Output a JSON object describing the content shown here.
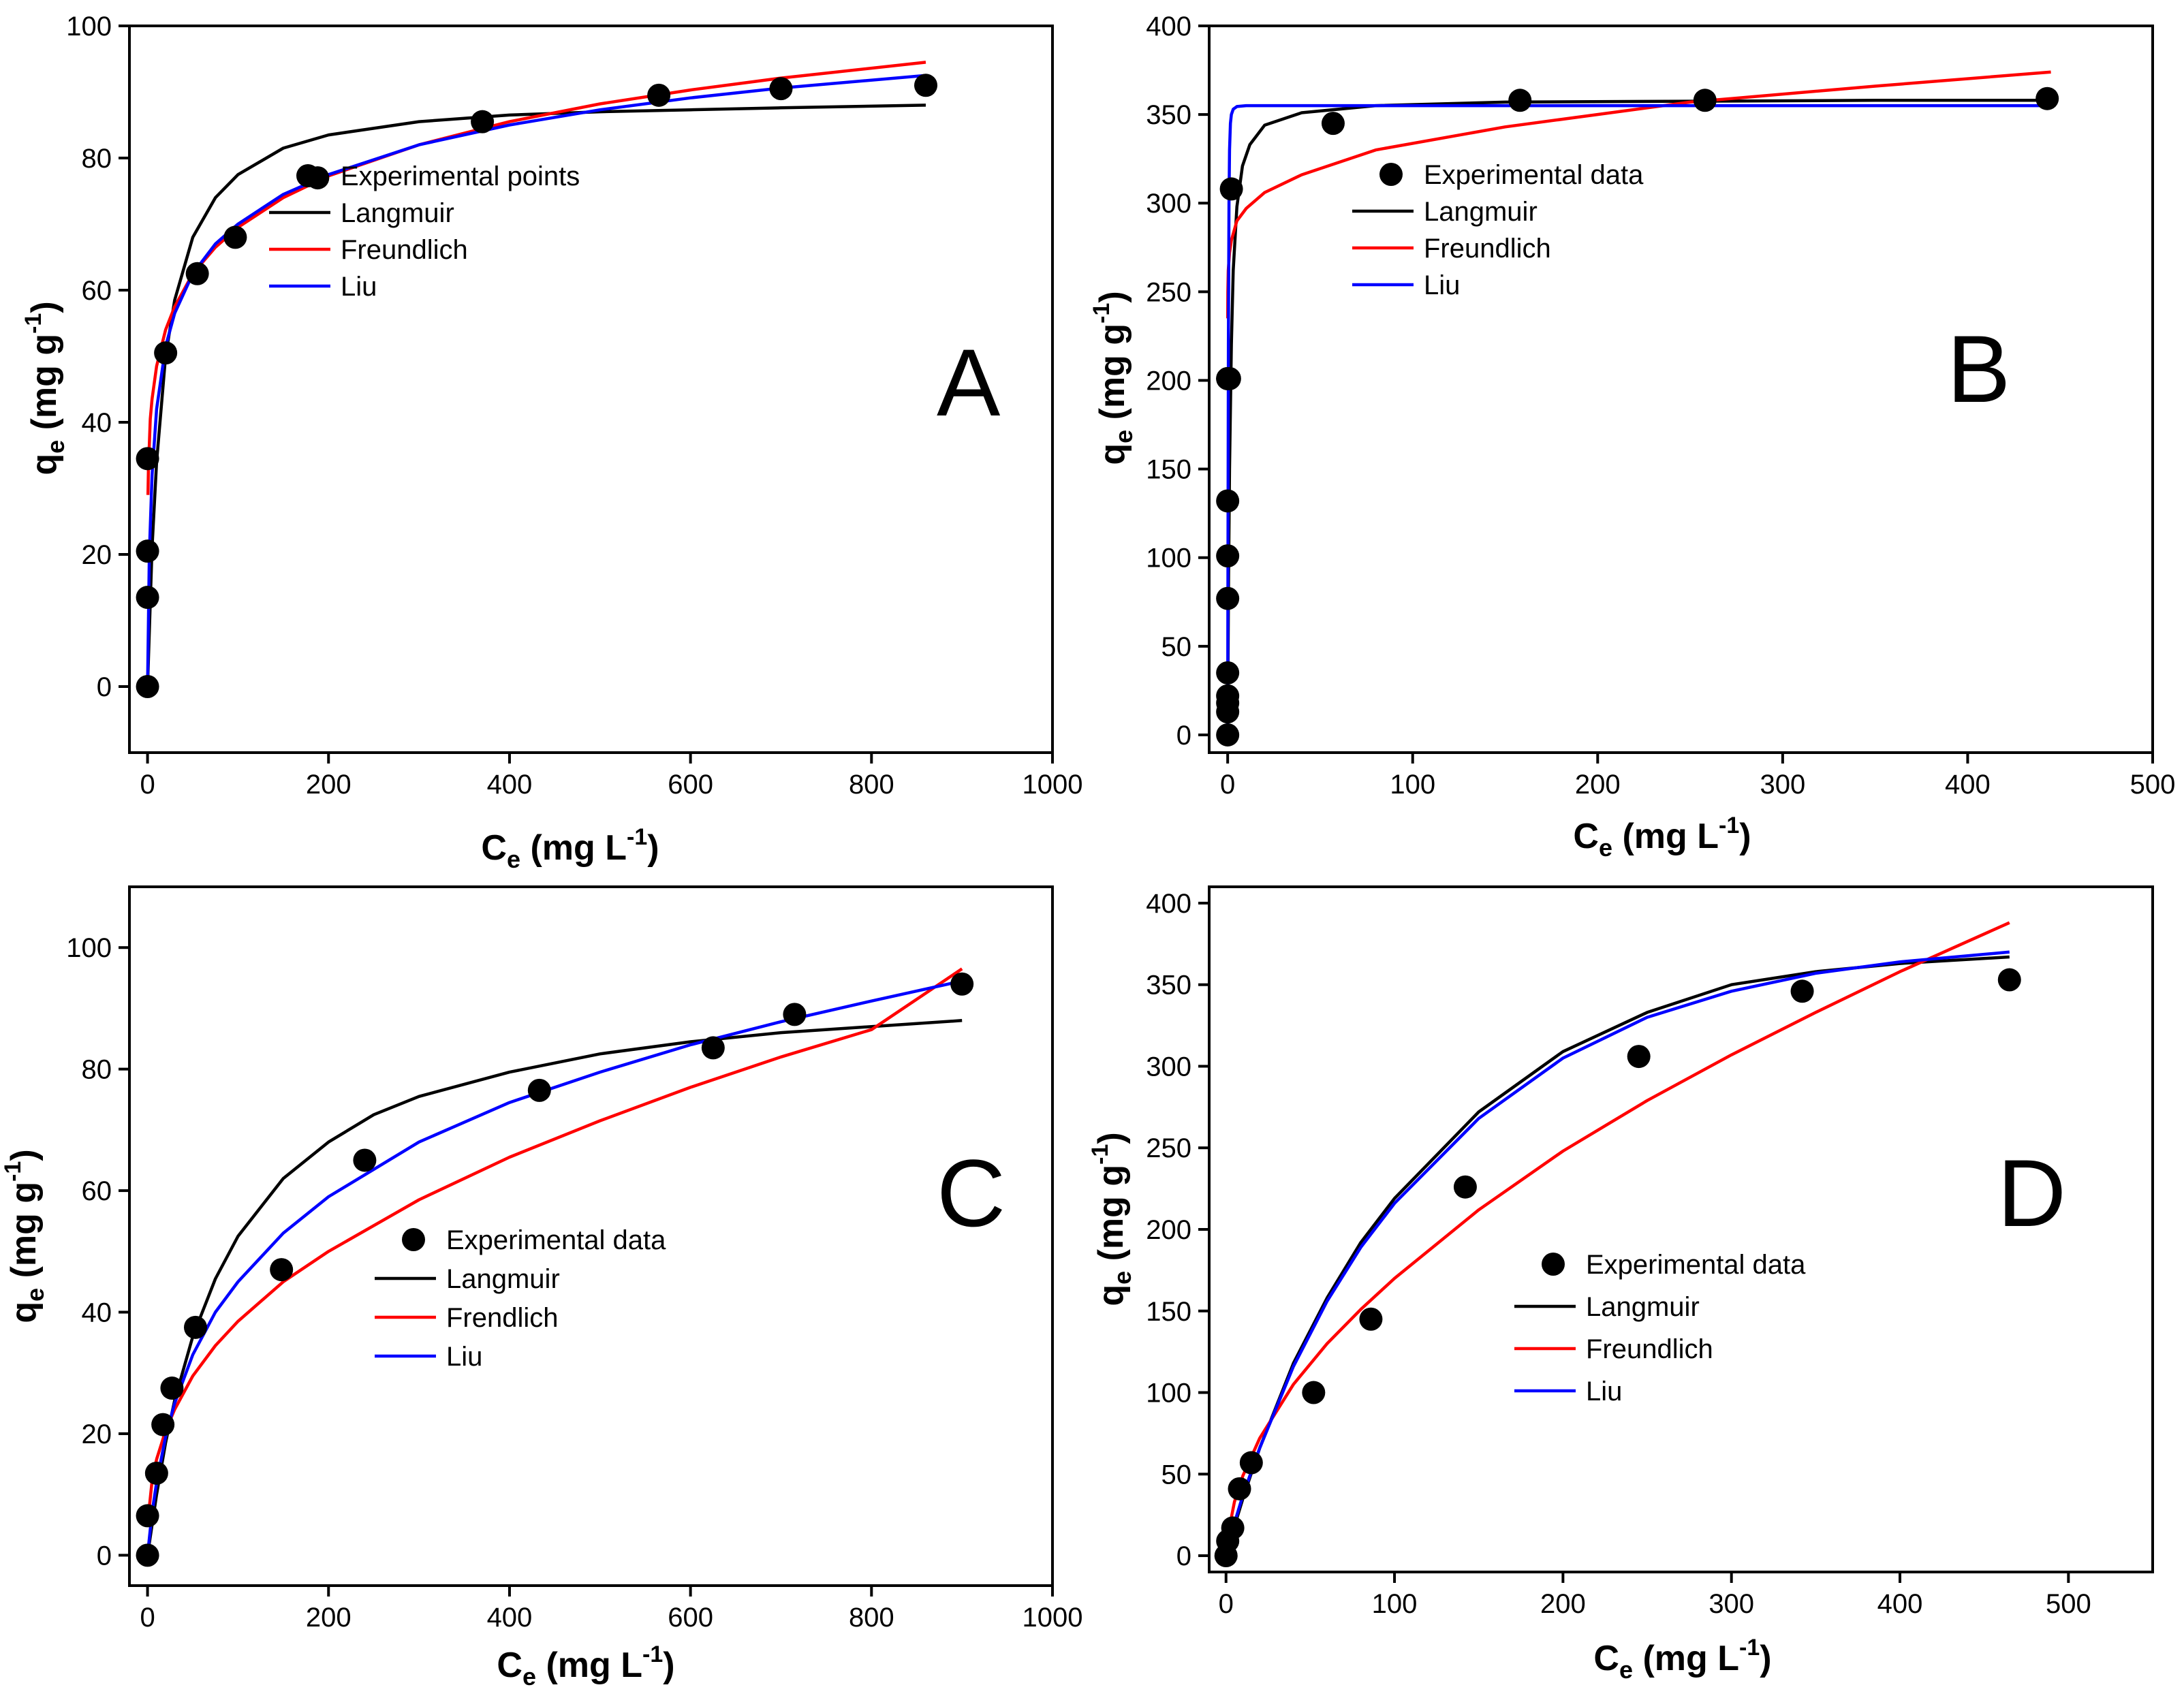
{
  "chart_data": [
    {
      "panel": "A",
      "type": "scatter",
      "panel_label": "A",
      "xlabel": {
        "main": "C",
        "sub": "e",
        "units": " (mg L",
        "sup": "-1",
        "close": ")"
      },
      "ylabel": {
        "main": "q",
        "sub": "e",
        "units": " (mg g",
        "sup": "-1",
        "close": ")"
      },
      "xlim": [
        -20,
        1000
      ],
      "ylim": [
        -10,
        100
      ],
      "xticks": [
        0,
        200,
        400,
        600,
        800,
        1000
      ],
      "yticks": [
        0,
        20,
        40,
        60,
        80,
        100
      ],
      "xtick_labels": [
        "0",
        "200",
        "400",
        "600",
        "800",
        "1000"
      ],
      "ytick_labels": [
        "0",
        "20",
        "40",
        "60",
        "80",
        "100"
      ],
      "legend_position": "center-left",
      "series": [
        {
          "name": "Experimental points",
          "kind": "scatter",
          "color": "#000000",
          "x": [
            0,
            0,
            0,
            0,
            20,
            55,
            97,
            188,
            370,
            565,
            700,
            860
          ],
          "y": [
            0,
            13.5,
            20.5,
            34.5,
            50.5,
            62.5,
            68,
            77,
            85.5,
            89.5,
            90.5,
            91
          ]
        },
        {
          "name": "Langmuir",
          "kind": "line",
          "color": "#000000",
          "x": [
            0,
            5,
            10,
            20,
            30,
            50,
            75,
            100,
            150,
            200,
            300,
            400,
            500,
            600,
            700,
            860
          ],
          "y": [
            0,
            21,
            34,
            50,
            58.5,
            68,
            74,
            77.5,
            81.5,
            83.5,
            85.5,
            86.5,
            87,
            87.3,
            87.6,
            88
          ]
        },
        {
          "name": "Freundlich",
          "kind": "line",
          "color": "#ff0000",
          "x": [
            0.5,
            1,
            3,
            5,
            10,
            20,
            30,
            50,
            75,
            100,
            150,
            200,
            300,
            400,
            500,
            600,
            700,
            860
          ],
          "y": [
            29,
            33,
            40.5,
            43.5,
            48.5,
            54,
            57.5,
            62.5,
            66.5,
            69.5,
            74,
            77.3,
            82,
            85.5,
            88.2,
            90.3,
            92.1,
            94.5
          ]
        },
        {
          "name": "Liu",
          "kind": "line",
          "color": "#0000ff",
          "x": [
            0,
            2,
            5,
            10,
            20,
            30,
            50,
            75,
            100,
            150,
            200,
            300,
            400,
            500,
            600,
            700,
            860
          ],
          "y": [
            0,
            20,
            32,
            42,
            51.5,
            56.5,
            62.5,
            67,
            70,
            74.5,
            77.5,
            82,
            85,
            87.3,
            89.1,
            90.6,
            92.5
          ]
        }
      ]
    },
    {
      "panel": "B",
      "type": "scatter",
      "panel_label": "B",
      "xlabel": {
        "main": "C",
        "sub": "e",
        "units": " (mg L",
        "sup": "-1",
        "close": ")"
      },
      "ylabel": {
        "main": "q",
        "sub": "e",
        "units": " (mg g",
        "sup": "-1",
        "close": ")"
      },
      "xlim": [
        -10,
        500
      ],
      "ylim": [
        -10,
        400
      ],
      "xticks": [
        0,
        100,
        200,
        300,
        400,
        500
      ],
      "yticks": [
        0,
        50,
        100,
        150,
        200,
        250,
        300,
        350,
        400
      ],
      "xtick_labels": [
        "0",
        "100",
        "200",
        "300",
        "400",
        "500"
      ],
      "ytick_labels": [
        "0",
        "50",
        "100",
        "150",
        "200",
        "250",
        "300",
        "350",
        "400"
      ],
      "legend_position": "center",
      "series": [
        {
          "name": "Experimental data",
          "kind": "scatter",
          "color": "#000000",
          "x": [
            0,
            0,
            0,
            0,
            0,
            0,
            0,
            0,
            0,
            0,
            1,
            2,
            57,
            158,
            258,
            443
          ],
          "y": [
            0,
            13,
            18,
            22,
            35,
            77,
            101,
            132,
            201,
            201,
            201,
            308,
            345,
            358,
            358,
            359
          ]
        },
        {
          "name": "Langmuir",
          "kind": "line",
          "color": "#000000",
          "x": [
            0,
            0.2,
            0.5,
            1,
            2,
            3,
            5,
            8,
            12,
            20,
            40,
            80,
            150,
            250,
            350,
            445
          ],
          "y": [
            0,
            40,
            90,
            150,
            220,
            262,
            298,
            321,
            333,
            344,
            351,
            355,
            357,
            357.5,
            358,
            358
          ]
        },
        {
          "name": "Freundlich",
          "kind": "line",
          "color": "#ff0000",
          "x": [
            0.02,
            0.1,
            0.3,
            1,
            2,
            5,
            10,
            20,
            40,
            80,
            150,
            250,
            350,
            445
          ],
          "y": [
            235,
            250,
            262,
            272,
            279,
            290,
            297,
            306,
            316,
            330,
            343,
            357,
            366,
            374
          ]
        },
        {
          "name": "Liu",
          "kind": "line",
          "color": "#0000ff",
          "x": [
            0,
            0.1,
            0.2,
            0.4,
            0.7,
            1,
            1.5,
            2,
            3,
            5,
            10,
            50,
            445
          ],
          "y": [
            0,
            60,
            120,
            220,
            300,
            330,
            345,
            350,
            353,
            354.5,
            355,
            355,
            355
          ]
        }
      ]
    },
    {
      "panel": "C",
      "type": "scatter",
      "panel_label": "C",
      "xlabel": {
        "main": "C",
        "sub": "e",
        "units": " (mg L",
        "sup": "-1",
        "close": ")"
      },
      "ylabel": {
        "main": "q",
        "sub": "e",
        "units": " (mg g",
        "sup": "-1",
        "close": ")"
      },
      "xlim": [
        -20,
        1000
      ],
      "ylim": [
        -5,
        110
      ],
      "xticks": [
        0,
        200,
        400,
        600,
        800,
        1000
      ],
      "yticks": [
        0,
        20,
        40,
        60,
        80,
        100
      ],
      "xtick_labels": [
        "0",
        "200",
        "400",
        "600",
        "800",
        "1000"
      ],
      "ytick_labels": [
        "0",
        "20",
        "40",
        "60",
        "80",
        "100"
      ],
      "legend_position": "center",
      "series": [
        {
          "name": "Experimental data",
          "kind": "scatter",
          "color": "#000000",
          "x": [
            0,
            0,
            10,
            17,
            27,
            53,
            148,
            240,
            433,
            625,
            715,
            900
          ],
          "y": [
            0,
            6.5,
            13.5,
            21.5,
            27.5,
            37.5,
            47,
            65,
            76.5,
            83.5,
            89,
            94
          ]
        },
        {
          "name": "Langmuir",
          "kind": "line",
          "color": "#000000",
          "x": [
            0,
            10,
            20,
            30,
            50,
            75,
            100,
            150,
            200,
            250,
            300,
            400,
            500,
            600,
            700,
            800,
            900
          ],
          "y": [
            0,
            10,
            18.5,
            25.5,
            36,
            45.5,
            52.5,
            62,
            68,
            72.5,
            75.5,
            79.5,
            82.5,
            84.5,
            86,
            87,
            88
          ]
        },
        {
          "name": "Frendlich",
          "kind": "line",
          "color": "#ff0000",
          "x": [
            1,
            5,
            10,
            20,
            30,
            50,
            75,
            100,
            150,
            200,
            300,
            400,
            500,
            600,
            700,
            800,
            900
          ],
          "y": [
            6.5,
            12.2,
            15.8,
            20.5,
            24,
            29.5,
            34.5,
            38.5,
            45,
            50,
            58.5,
            65.5,
            71.5,
            77,
            82,
            86.5,
            96.5
          ]
        },
        {
          "name": "Liu",
          "kind": "line",
          "color": "#0000ff",
          "x": [
            0,
            5,
            10,
            20,
            30,
            50,
            75,
            100,
            150,
            200,
            300,
            400,
            500,
            600,
            700,
            800,
            900
          ],
          "y": [
            0,
            7,
            12,
            19.5,
            25,
            33,
            40,
            45,
            53,
            59,
            68,
            74.5,
            79.5,
            84,
            87.8,
            91.2,
            94.5
          ]
        }
      ]
    },
    {
      "panel": "D",
      "type": "scatter",
      "panel_label": "D",
      "xlabel": {
        "main": "C",
        "sub": "e",
        "units": " (mg L",
        "sup": "-1",
        "close": ")"
      },
      "ylabel": {
        "main": "q",
        "sub": "e",
        "units": " (mg g",
        "sup": "-1",
        "close": ")"
      },
      "xlim": [
        -10,
        550
      ],
      "ylim": [
        -10,
        410
      ],
      "xticks": [
        0,
        100,
        200,
        300,
        400,
        500
      ],
      "yticks": [
        0,
        50,
        100,
        150,
        200,
        250,
        300,
        350,
        400
      ],
      "xtick_labels": [
        "0",
        "100",
        "200",
        "300",
        "400",
        "500"
      ],
      "ytick_labels": [
        "0",
        "50",
        "100",
        "150",
        "200",
        "250",
        "300",
        "350",
        "400"
      ],
      "legend_position": "center",
      "series": [
        {
          "name": "Experimental data",
          "kind": "scatter",
          "color": "#000000",
          "x": [
            0,
            1,
            4,
            8,
            15,
            52,
            86,
            142,
            245,
            342,
            465
          ],
          "y": [
            0,
            9,
            17,
            41,
            57,
            100,
            145,
            226,
            306,
            346,
            353
          ]
        },
        {
          "name": "Langmuir",
          "kind": "line",
          "color": "#000000",
          "x": [
            0,
            5,
            10,
            20,
            40,
            60,
            80,
            100,
            150,
            200,
            250,
            300,
            350,
            400,
            465
          ],
          "y": [
            0,
            18,
            35,
            66,
            118,
            158,
            192,
            219,
            272,
            309,
            333,
            350,
            358,
            363,
            367
          ]
        },
        {
          "name": "Freundlich",
          "kind": "line",
          "color": "#ff0000",
          "x": [
            1,
            5,
            10,
            20,
            40,
            60,
            80,
            100,
            150,
            200,
            250,
            300,
            350,
            400,
            465
          ],
          "y": [
            12,
            33,
            49,
            72,
            105,
            130,
            151,
            170,
            212,
            248,
            279,
            307,
            333,
            358,
            388
          ]
        },
        {
          "name": "Liu",
          "kind": "line",
          "color": "#0000ff",
          "x": [
            0,
            5,
            10,
            20,
            40,
            60,
            80,
            100,
            150,
            200,
            250,
            300,
            350,
            400,
            465
          ],
          "y": [
            0,
            20,
            37,
            66,
            116,
            156,
            189,
            216,
            268,
            305,
            330,
            346,
            357,
            364,
            370
          ]
        }
      ]
    }
  ]
}
